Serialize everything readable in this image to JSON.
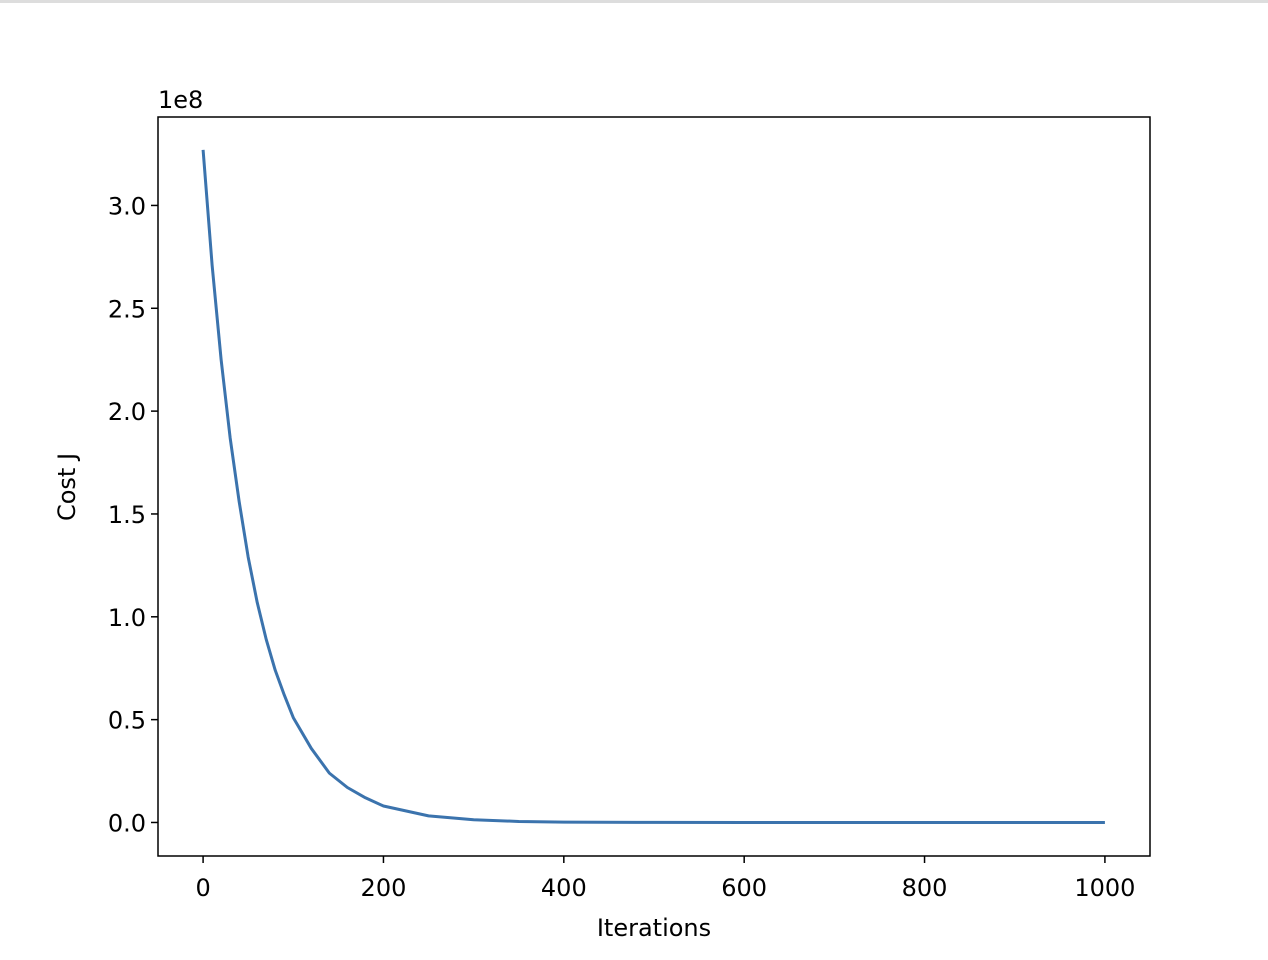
{
  "chart_data": {
    "type": "line",
    "xlabel": "Iterations",
    "ylabel": "Cost J",
    "y_offset_label": "1e8",
    "x": [
      0,
      10,
      20,
      30,
      40,
      50,
      60,
      70,
      80,
      90,
      100,
      120,
      140,
      160,
      180,
      200,
      250,
      300,
      350,
      400,
      500,
      600,
      700,
      800,
      900,
      1000
    ],
    "series": [
      {
        "color": "#3b73ad",
        "values": [
          327000000,
          271000000,
          225000000,
          187000000,
          156000000,
          129000000,
          107000000,
          89000000,
          74000000,
          62000000,
          51000000,
          36000000,
          24000000,
          17000000,
          12000000,
          8000000,
          3200000,
          1300000,
          500000,
          200000,
          30000,
          0,
          0,
          0,
          0,
          0
        ]
      }
    ],
    "xlim": [
      -50,
      1050
    ],
    "xticks": [
      0,
      200,
      400,
      600,
      800,
      1000
    ],
    "ylim": [
      -16300000,
      343000000
    ],
    "yticks": [
      {
        "value": 0,
        "label": "0.0"
      },
      {
        "value": 50000000,
        "label": "0.5"
      },
      {
        "value": 100000000,
        "label": "1.0"
      },
      {
        "value": 150000000,
        "label": "1.5"
      },
      {
        "value": 200000000,
        "label": "2.0"
      },
      {
        "value": 250000000,
        "label": "2.5"
      },
      {
        "value": 300000000,
        "label": "3.0"
      }
    ],
    "grid": false
  }
}
